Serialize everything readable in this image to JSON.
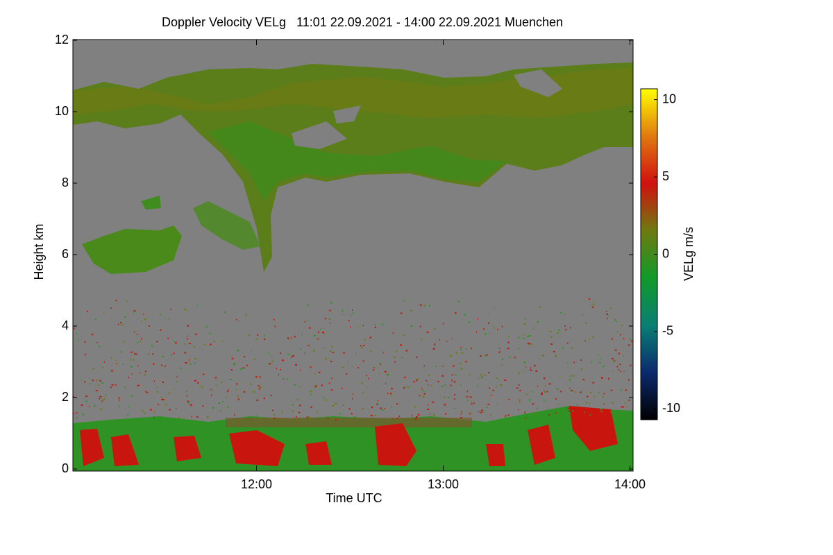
{
  "chart_data": {
    "type": "heatmap",
    "title": "Doppler Velocity VELg   11:01 22.09.2021 - 14:00 22.09.2021 Muenchen",
    "x_label": "Time UTC",
    "y_label": "Height km",
    "colorbar_label": "VELg m/s",
    "xlim": [
      661,
      841
    ],
    "xticks": [
      {
        "value": 720,
        "label": "12:00"
      },
      {
        "value": 780,
        "label": "13:00"
      },
      {
        "value": 840,
        "label": "14:00"
      }
    ],
    "ylim": [
      0,
      12
    ],
    "yticks": [
      0,
      2,
      4,
      6,
      8,
      10,
      12
    ],
    "clim": [
      -10.7,
      10.7
    ],
    "cticks": [
      -10,
      -5,
      0,
      5,
      10
    ],
    "colormap": [
      "#000000",
      "#0b2a6e",
      "#0a7f74",
      "#119a2a",
      "#6e7a10",
      "#d01010",
      "#e07a10",
      "#ffff00"
    ],
    "background": "#808080"
  }
}
